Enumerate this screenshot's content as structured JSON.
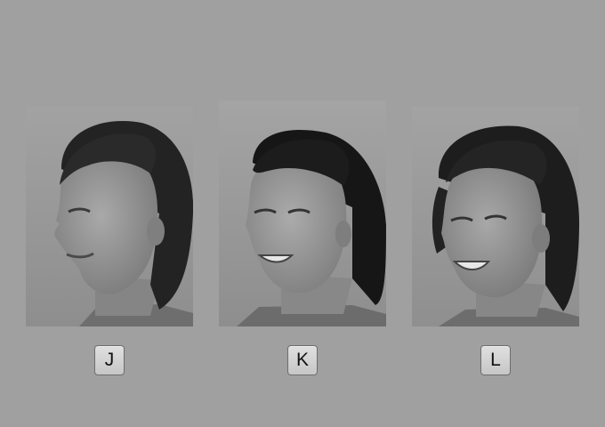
{
  "choices": [
    {
      "key": "J",
      "photo_icon": "face-profile-icon"
    },
    {
      "key": "K",
      "photo_icon": "face-profile-icon"
    },
    {
      "key": "L",
      "photo_icon": "face-profile-icon"
    }
  ],
  "colors": {
    "background": "#a0a0a0",
    "button_face": "#d4d4d4",
    "button_border": "#6d6d6d",
    "hair": "#1e1e1e",
    "skin": "#8f8f8f"
  }
}
